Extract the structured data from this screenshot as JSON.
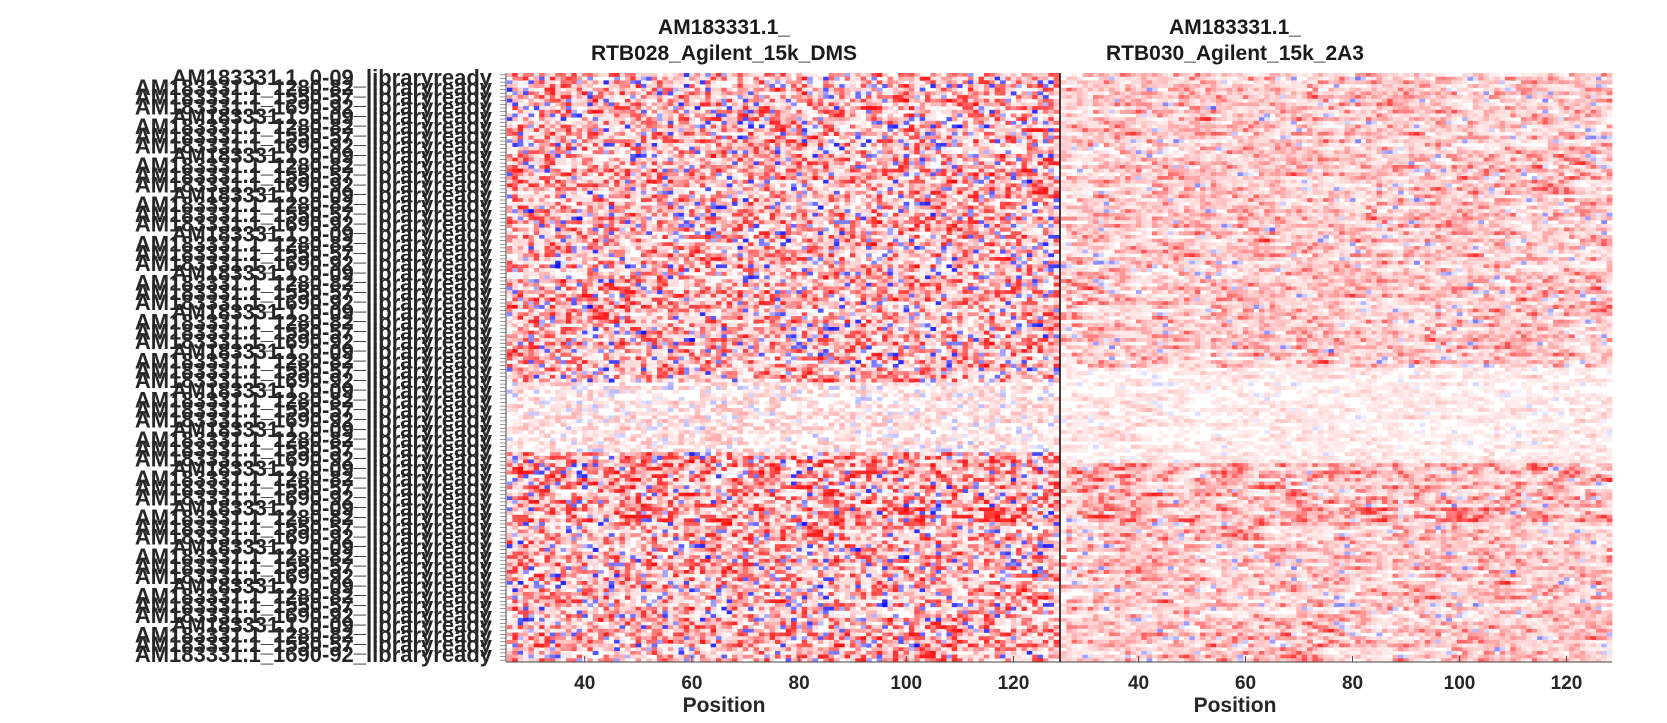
{
  "chart_data": {
    "type": "heatmap",
    "colormap": {
      "negative": "#0000ff",
      "zero": "#ffffff",
      "positive": "#ff0000"
    },
    "grid": false,
    "x_range": [
      26,
      128
    ],
    "x_ticks": [
      40,
      60,
      80,
      100,
      120
    ],
    "xlabel": "Position",
    "row_label_texts": [
      "AM183331.1_0-09_libraryready",
      "AM183331.1_1280-82_libraryready",
      "AM183331.1_1550-57_libraryready",
      "AM183331.1_1690-92_libraryready"
    ],
    "panels": [
      {
        "title_line1": "AM183331.1_",
        "title_line2": "RTB028_Agilent_15k_DMS",
        "xlabel": "Position",
        "noise": 0.9,
        "blue_rate": 0.09,
        "smooth": 0.15,
        "bands": [
          {
            "start_frac": 0.52,
            "end_frac": 0.66,
            "style": "washout"
          },
          {
            "start_frac": 0.64,
            "end_frac": 0.76,
            "style": "hot"
          }
        ]
      },
      {
        "title_line1": "AM183331.1_",
        "title_line2": "RTB030_Agilent_15k_2A3",
        "xlabel": "Position",
        "noise": 0.6,
        "blue_rate": 0.03,
        "smooth": 0.45,
        "bands": [
          {
            "start_frac": 0.5,
            "end_frac": 0.66,
            "style": "washout"
          },
          {
            "start_frac": 0.66,
            "end_frac": 0.76,
            "style": "hot"
          }
        ]
      }
    ]
  }
}
